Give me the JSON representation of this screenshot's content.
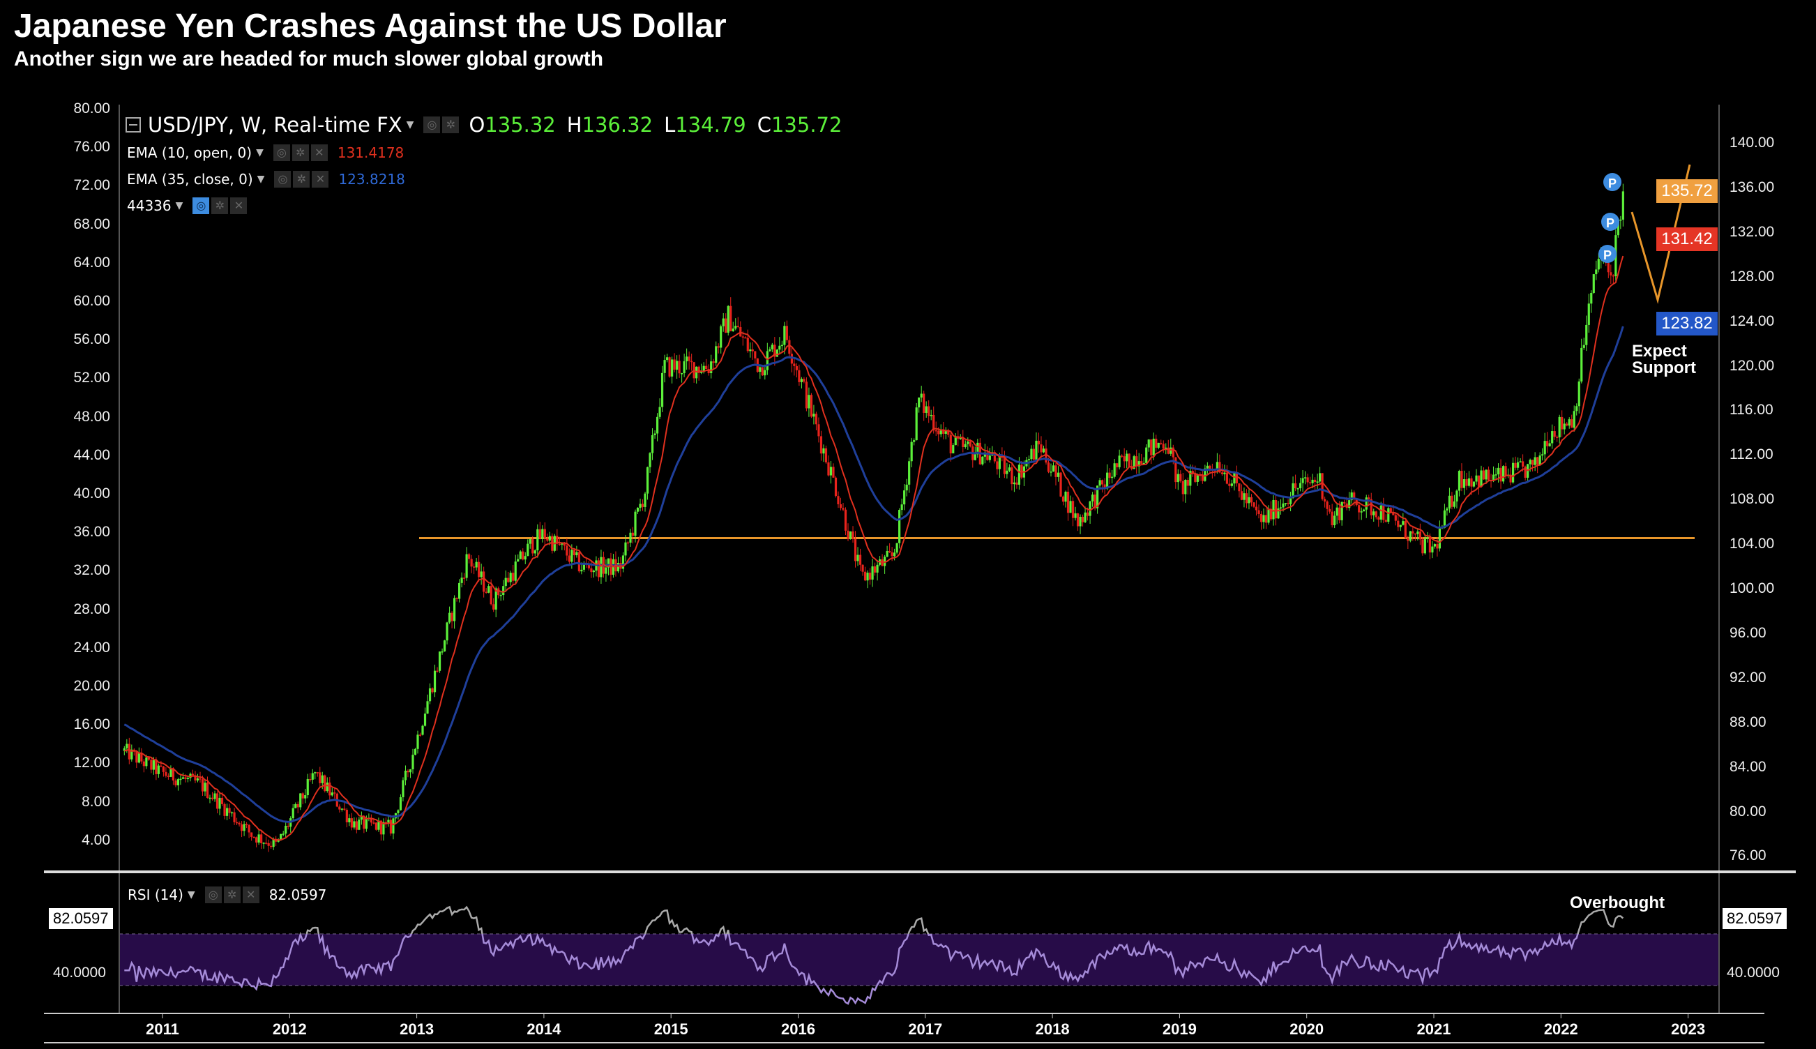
{
  "header": {
    "title": "Japanese Yen Crashes Against the US Dollar",
    "subtitle": "Another sign we are headed for much slower global growth"
  },
  "legend": {
    "symbol": "USD/JPY, W, Real-time FX",
    "o_label": "O",
    "o_value": "135.32",
    "h_label": "H",
    "h_value": "136.32",
    "l_label": "L",
    "l_value": "134.79",
    "c_label": "C",
    "c_value": "135.72",
    "ema10_label": "EMA (10, open, 0)",
    "ema10_value": "131.4178",
    "ema35_label": "EMA (35, close, 0)",
    "ema35_value": "123.8218",
    "extra_label": "44336",
    "rsi_label": "RSI (14)",
    "rsi_value": "82.0597"
  },
  "price_labels": {
    "last": "135.72",
    "ema10": "131.42",
    "ema35": "123.82",
    "last_color": "#f0a040",
    "ema10_color": "#e53525",
    "ema35_color": "#2357c8"
  },
  "annotations": {
    "expect_line1": "Expect",
    "expect_line2": "Support",
    "overbought": "Overbought",
    "support_level": 104.6
  },
  "rsi_axis": {
    "current": "82.0597",
    "mid": "40.0000"
  },
  "chart_data": {
    "type": "candlestick",
    "title": "USD/JPY, W, Real-time FX",
    "right_axis_ticks": [
      "140.00",
      "136.00",
      "132.00",
      "128.00",
      "124.00",
      "120.00",
      "116.00",
      "112.00",
      "108.00",
      "104.00",
      "100.00",
      "96.00",
      "92.00",
      "88.00",
      "84.00",
      "80.00",
      "76.00"
    ],
    "left_axis_ticks": [
      "80.00",
      "76.00",
      "72.00",
      "68.00",
      "64.00",
      "60.00",
      "56.00",
      "52.00",
      "48.00",
      "44.00",
      "40.00",
      "36.00",
      "32.00",
      "28.00",
      "24.00",
      "20.00",
      "16.00",
      "12.00",
      "8.00",
      "4.00"
    ],
    "x_ticks": [
      "2011",
      "2012",
      "2013",
      "2014",
      "2015",
      "2016",
      "2017",
      "2018",
      "2019",
      "2020",
      "2021",
      "2022",
      "2023"
    ],
    "ylim": [
      74,
      142
    ],
    "series_anchor_closes": [
      [
        2010.7,
        85.5
      ],
      [
        2011.0,
        83.5
      ],
      [
        2011.3,
        82.5
      ],
      [
        2011.7,
        78
      ],
      [
        2011.9,
        77
      ],
      [
        2012.2,
        83.5
      ],
      [
        2012.5,
        79
      ],
      [
        2012.8,
        78.6
      ],
      [
        2013.0,
        86.5
      ],
      [
        2013.4,
        103
      ],
      [
        2013.6,
        99
      ],
      [
        2013.9,
        104
      ],
      [
        2014.0,
        105
      ],
      [
        2014.3,
        102
      ],
      [
        2014.6,
        102
      ],
      [
        2014.8,
        109
      ],
      [
        2014.95,
        120
      ],
      [
        2015.3,
        120
      ],
      [
        2015.45,
        124.5
      ],
      [
        2015.7,
        120
      ],
      [
        2015.9,
        123
      ],
      [
        2016.1,
        116
      ],
      [
        2016.3,
        109
      ],
      [
        2016.5,
        101
      ],
      [
        2016.75,
        103
      ],
      [
        2016.95,
        117
      ],
      [
        2017.2,
        113
      ],
      [
        2017.5,
        112
      ],
      [
        2017.7,
        110
      ],
      [
        2017.9,
        113
      ],
      [
        2018.2,
        106
      ],
      [
        2018.5,
        111
      ],
      [
        2018.9,
        113.4
      ],
      [
        2019.0,
        109
      ],
      [
        2019.3,
        111.5
      ],
      [
        2019.65,
        106
      ],
      [
        2019.9,
        109
      ],
      [
        2020.1,
        110
      ],
      [
        2020.2,
        106
      ],
      [
        2020.3,
        108
      ],
      [
        2020.6,
        107
      ],
      [
        2020.9,
        104
      ],
      [
        2021.0,
        103.5
      ],
      [
        2021.2,
        110
      ],
      [
        2021.5,
        110
      ],
      [
        2021.8,
        111
      ],
      [
        2021.9,
        114
      ],
      [
        2022.1,
        115.5
      ],
      [
        2022.2,
        124
      ],
      [
        2022.3,
        130
      ],
      [
        2022.4,
        128
      ],
      [
        2022.45,
        133
      ],
      [
        2022.5,
        135.72
      ]
    ],
    "indicators": [
      {
        "name": "EMA (10, open, 0)",
        "color": "#e0301e",
        "last": 131.4178
      },
      {
        "name": "EMA (35, close, 0)",
        "color": "#1f3f9a",
        "last": 123.8218
      },
      {
        "name": "RSI (14)",
        "color": "#a58bd8",
        "last": 82.0597,
        "band": [
          30,
          70
        ]
      }
    ],
    "up_color": "#5cf03a",
    "down_color": "#e8231c"
  }
}
